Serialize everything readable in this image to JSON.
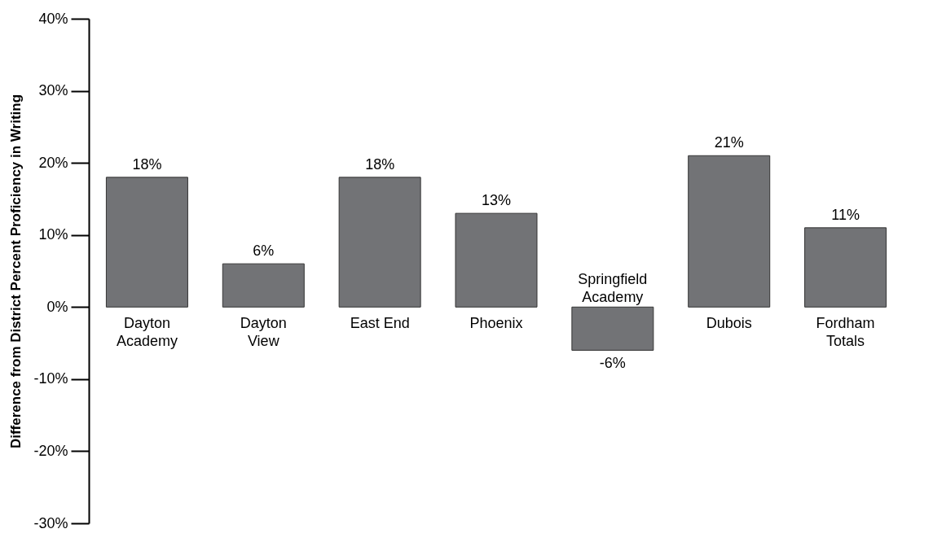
{
  "chart_data": {
    "type": "bar",
    "ylabel": "Difference from District Percent Proficiency in Writing",
    "categories": [
      "Dayton\nAcademy",
      "Dayton\nView",
      "East End",
      "Phoenix",
      "Springfield\nAcademy",
      "Dubois",
      "Fordham\nTotals"
    ],
    "values": [
      18,
      6,
      18,
      13,
      -6,
      21,
      11
    ],
    "value_labels": [
      "18%",
      "6%",
      "18%",
      "13%",
      "-6%",
      "21%",
      "11%"
    ],
    "color": "#727376",
    "ylim": [
      -30,
      40
    ],
    "yticks": [
      {
        "value": -30,
        "label": "-30%"
      },
      {
        "value": -20,
        "label": "-20%"
      },
      {
        "value": -10,
        "label": "-10%"
      },
      {
        "value": 0,
        "label": "0%"
      },
      {
        "value": 10,
        "label": "10%"
      },
      {
        "value": 20,
        "label": "20%"
      },
      {
        "value": 30,
        "label": "30%"
      },
      {
        "value": 40,
        "label": "40%"
      }
    ],
    "grid": false
  }
}
